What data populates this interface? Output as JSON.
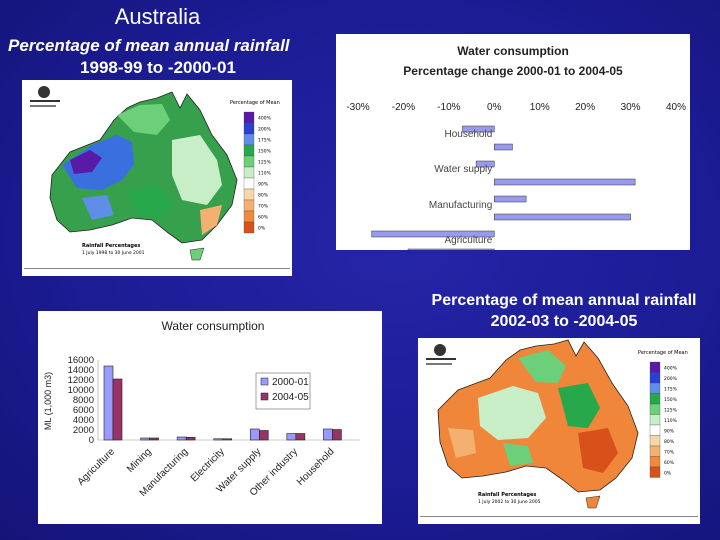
{
  "slide": {
    "title": "Australia",
    "left_subtitle_line1": "Percentage of mean annual rainfall",
    "left_subtitle_line2": "1998-99 to -2000-01",
    "right_subtitle_line1": "Percentage of mean annual rainfall",
    "right_subtitle_line2": "2002-03 to -2004-05"
  },
  "map_1998": {
    "legend_title": "Percentage of Mean",
    "legend_labels": [
      "400%",
      "200%",
      "175%",
      "150%",
      "125%",
      "110%",
      "90%",
      "80%",
      "70%",
      "60%",
      "0%"
    ],
    "legend_colors": [
      "#5a1aa8",
      "#2a3fd8",
      "#5f8ee8",
      "#27a84a",
      "#6ccf7a",
      "#c8eec8",
      "#ffffff",
      "#f6d8a8",
      "#f4b070",
      "#ef8a3c",
      "#d8501a"
    ],
    "footer_title": "Rainfall Percentages",
    "footer_dates": "1 July 1998 to 30 June 2001"
  },
  "map_2002": {
    "legend_title": "Percentage of Mean",
    "legend_labels": [
      "400%",
      "200%",
      "175%",
      "150%",
      "125%",
      "110%",
      "90%",
      "80%",
      "70%",
      "60%",
      "0%"
    ],
    "footer_title": "Rainfall Percentages",
    "footer_dates": "1 July 2002 to 30 June 2005"
  },
  "chart_data": [
    {
      "type": "bar",
      "orientation": "horizontal",
      "title": "Water consumption",
      "subtitle": "Percentage change 2000-01 to 2004-05",
      "categories": [
        "Household",
        "Water supply",
        "Manufacturing",
        "Agriculture"
      ],
      "series": [
        {
          "values": [
            -7,
            -4,
            7,
            -27
          ]
        },
        {
          "values": [
            4,
            31,
            30,
            -19
          ]
        }
      ],
      "xlim": [
        -30,
        40
      ],
      "xticks": [
        "-30%",
        "-20%",
        "-10%",
        "0%",
        "10%",
        "20%",
        "30%",
        "40%"
      ],
      "grid": false,
      "bar_color": "#9999ee"
    },
    {
      "type": "bar",
      "title": "Water consumption",
      "ylabel": "ML (1,000 m3)",
      "categories": [
        "Agriculture",
        "Mining",
        "Manufacturing",
        "Electricity",
        "Water supply",
        "Other industry",
        "Household"
      ],
      "series": [
        {
          "name": "2000-01",
          "color": "#9999ff",
          "values": [
            14800,
            400,
            600,
            250,
            2200,
            1300,
            2200
          ]
        },
        {
          "name": "2004-05",
          "color": "#993366",
          "values": [
            12200,
            400,
            550,
            250,
            1900,
            1300,
            2100
          ]
        }
      ],
      "ylim": [
        0,
        16000
      ],
      "yticks": [
        "0",
        "2000",
        "4000",
        "6000",
        "8000",
        "10000",
        "12000",
        "14000",
        "16000"
      ],
      "legend": "right"
    }
  ]
}
